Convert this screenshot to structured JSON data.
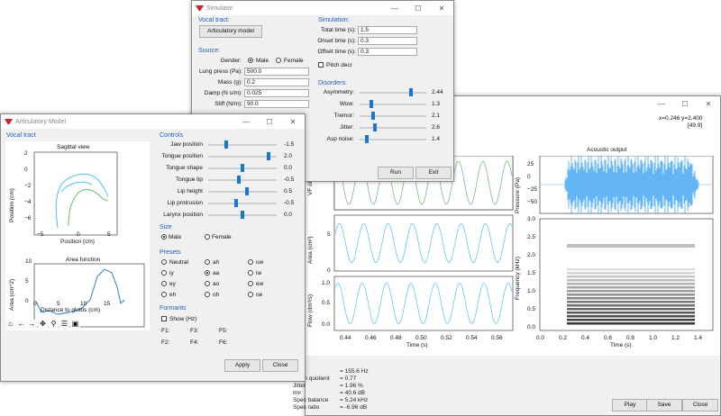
{
  "main_window": {
    "coords": "x=0.246 y=2.400",
    "coords2": "[49.9]",
    "buttons": {
      "play": "Play",
      "save": "Save",
      "close": "Close"
    },
    "plots": {
      "vf_ylabel": "VF dis",
      "area_ylabel": "Area (cm²)",
      "flow_ylabel": "Flow (dm³/s)",
      "time_xlabel": "Time (s)",
      "x_ticks": [
        "0.44",
        "0.46",
        "0.48",
        "0.50",
        "0.52",
        "0.54",
        "0.56"
      ],
      "area_yticks": [
        "5",
        "0"
      ],
      "flow_yticks": [
        "1.0",
        "0.5",
        "0.0"
      ],
      "acoustic_title": "Acoustic output",
      "pressure_ylabel": "Pressure (Pa)",
      "pressure_yticks": [
        "25",
        "0",
        "−25",
        "−50"
      ],
      "freq_ylabel": "Frequency (kHz)",
      "freq_yticks": [
        "3.0",
        "2.5",
        "2.0",
        "1.5",
        "1.0",
        "0.5",
        "0.0"
      ],
      "spec_xticks": [
        "0.0",
        "0.2",
        "0.4",
        "0.6",
        "0.8",
        "1.0",
        "1.2",
        "1.4"
      ],
      "spec_xlabel": "Time (s)"
    },
    "stats": [
      {
        "label": "Open quotient",
        "value": "= 0.77"
      },
      {
        "label": "Jitter",
        "value": "= 1.96 %"
      },
      {
        "label": "Imr",
        "value": "= 40.6 dB"
      },
      {
        "label": "Spec balance",
        "value": "= 5.24 kHz"
      },
      {
        "label": "Spec ratio",
        "value": "= -6.96 dB"
      }
    ],
    "f0_value": "= 155.6 Hz"
  },
  "simulator": {
    "title": "Simulator",
    "vocal_tract_label": "Vocal tract:",
    "articulatory_button": "Articulatory model",
    "source_label": "Source:",
    "gender_label": "Gender:",
    "male": "Male",
    "female": "Female",
    "fields": [
      {
        "label": "Lung press (Pa):",
        "value": "500.0"
      },
      {
        "label": "Mass (g):",
        "value": "0.2"
      },
      {
        "label": "Damp (N s/m):",
        "value": "0.025"
      },
      {
        "label": "Stiff (N/m):",
        "value": "90.0"
      }
    ],
    "simulation_label": "Simulation:",
    "sim_fields": [
      {
        "label": "Total time (s):",
        "value": "1.5"
      },
      {
        "label": "Onset time (s):",
        "value": "0.3"
      },
      {
        "label": "Offset time (s):",
        "value": "0.3"
      }
    ],
    "pitch_decr": "Pitch decr",
    "disorders_label": "Disorders:",
    "disorders": [
      {
        "label": "Asymmetry:",
        "value": "2.44",
        "pos": 0.78
      },
      {
        "label": "Wow:",
        "value": "1.3",
        "pos": 0.15
      },
      {
        "label": "Tremor:",
        "value": "2.1",
        "pos": 0.18
      },
      {
        "label": "Jitter:",
        "value": "2.6",
        "pos": 0.22
      },
      {
        "label": "Asp noise:",
        "value": "1.4",
        "pos": 0.08
      }
    ],
    "run": "Run",
    "exit": "Exit"
  },
  "articulatory": {
    "title": "Articulatory Model",
    "vocal_tract_label": "Vocal tract",
    "sagittal_title": "Sagittal view",
    "sag_ylabel": "Position (cm)",
    "sag_xlabel": "Position (cm)",
    "sag_xticks": [
      "−5",
      "0",
      "5"
    ],
    "sag_yticks": [
      "2",
      "0",
      "−2",
      "−4",
      "−6"
    ],
    "area_title": "Area function",
    "area_ylabel": "Area (cm^2)",
    "area_xlabel": "Distance to glottis (cm)",
    "area_xticks": [
      "0",
      "5",
      "10",
      "15"
    ],
    "area_yticks": [
      "10",
      "5",
      "0"
    ],
    "controls_label": "Controls",
    "controls": [
      {
        "label": "Jaw position",
        "value": "-1.5",
        "pos": 0.25
      },
      {
        "label": "Tongue position",
        "value": "2.0",
        "pos": 0.9
      },
      {
        "label": "Tongue shape",
        "value": "0.0",
        "pos": 0.5
      },
      {
        "label": "Tongue tip",
        "value": "-0.5",
        "pos": 0.45
      },
      {
        "label": "Lip height",
        "value": "0.5",
        "pos": 0.57
      },
      {
        "label": "Lip protrusion",
        "value": "-0.5",
        "pos": 0.4
      },
      {
        "label": "Larynx position",
        "value": "0.0",
        "pos": 0.5
      }
    ],
    "size_label": "Size",
    "male": "Male",
    "female": "Female",
    "presets_label": "Presets",
    "presets": [
      [
        "Neutral",
        "ah",
        "uw"
      ],
      [
        "iy",
        "aa",
        "iw"
      ],
      [
        "ey",
        "ao",
        "ew"
      ],
      [
        "eh",
        "oh",
        "oe"
      ]
    ],
    "formants_label": "Formants",
    "show_hz": "Show (Hz)",
    "formant_labels": [
      "F1:",
      "F3:",
      "F5:",
      "F2:",
      "F4:",
      "F6:"
    ],
    "apply": "Apply",
    "close": "Close",
    "toolbar_icons": [
      "home-icon",
      "back-arrow-icon",
      "forward-arrow-icon",
      "pan-icon",
      "zoom-icon",
      "configure-icon",
      "save-icon"
    ]
  }
}
